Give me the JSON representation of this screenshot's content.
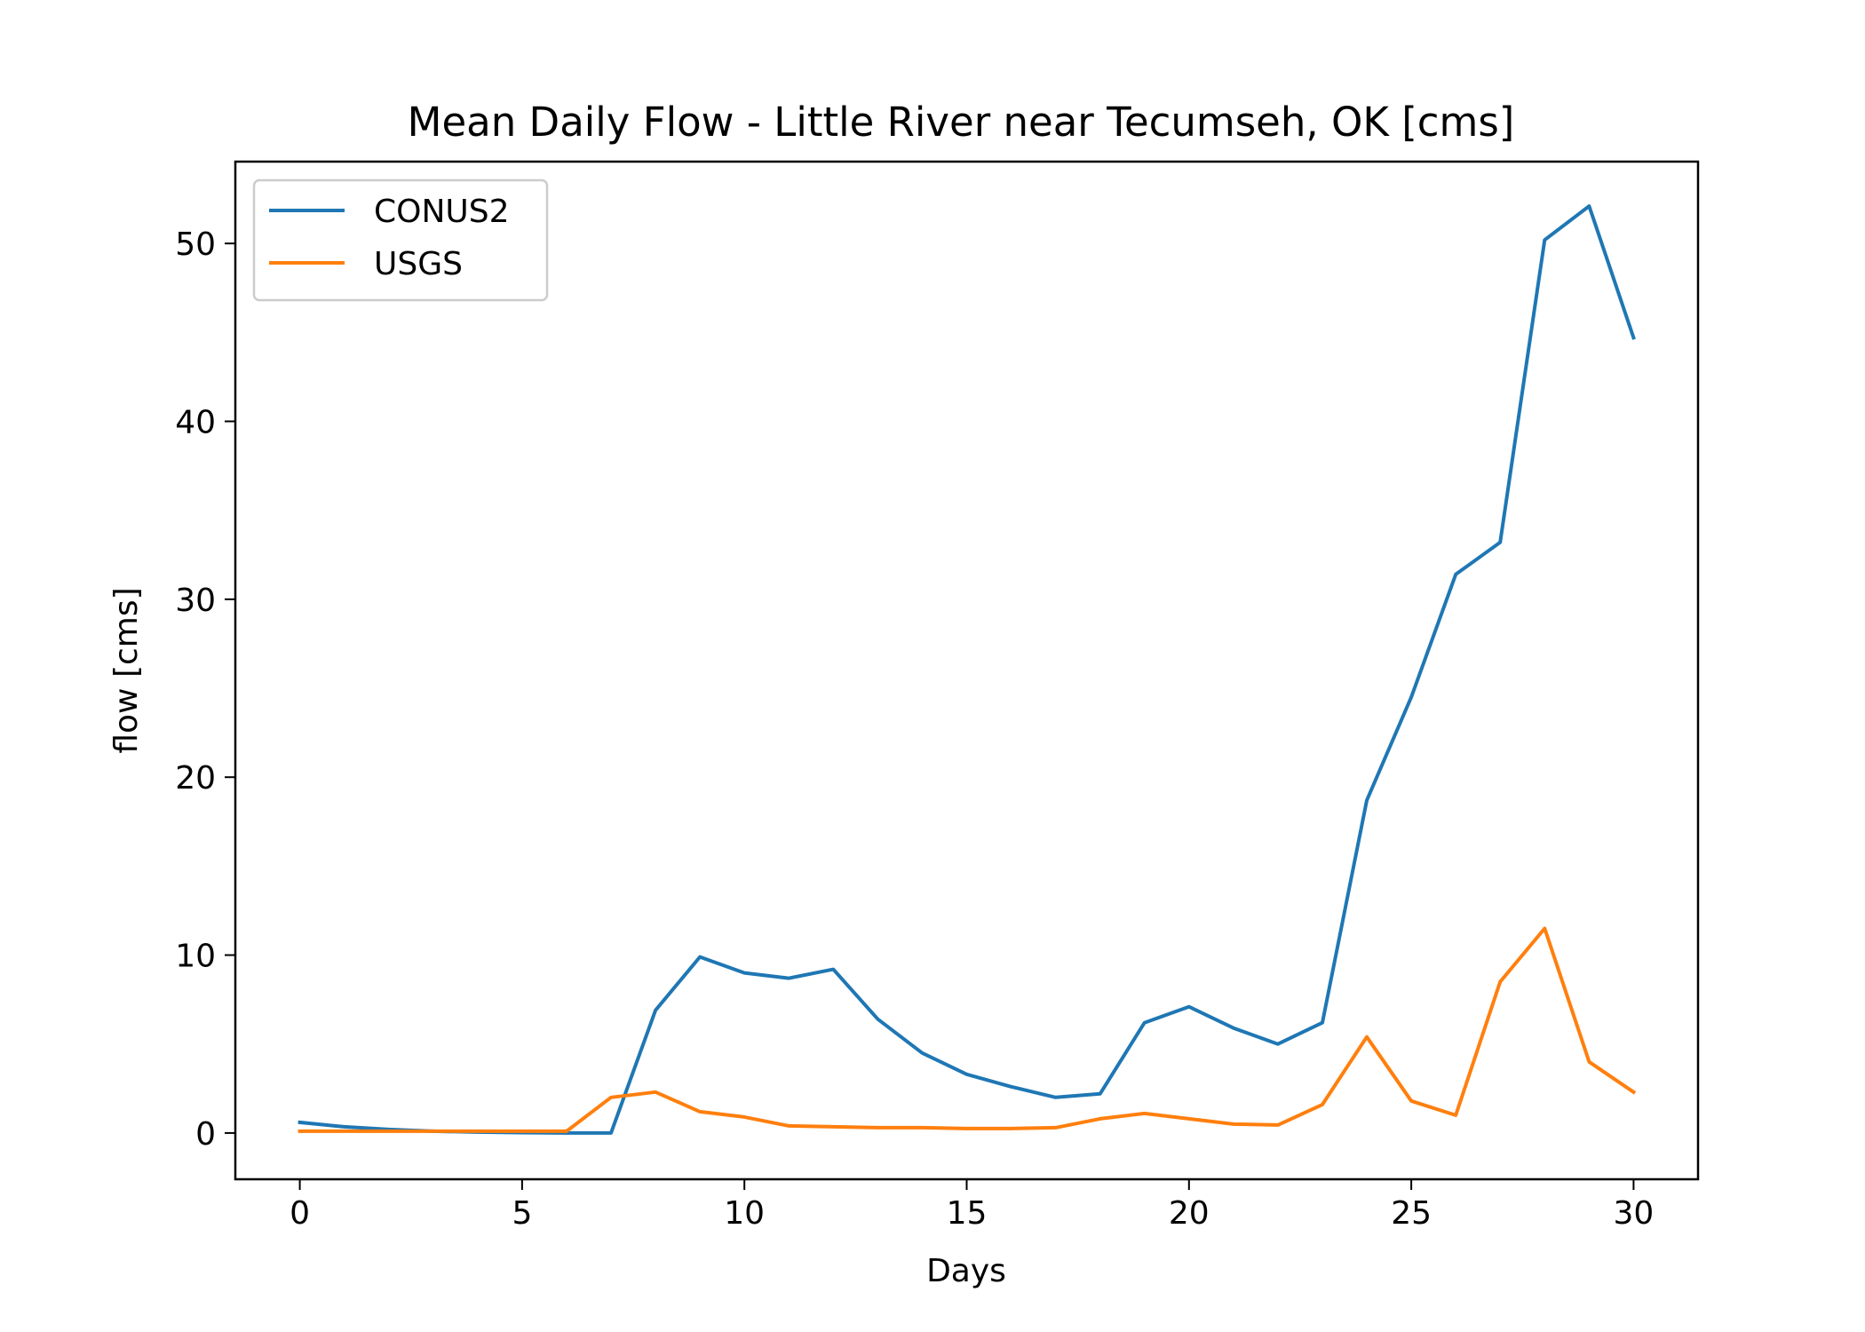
{
  "chart_data": {
    "type": "line",
    "title": "Mean Daily Flow - Little River near Tecumseh, OK [cms]",
    "xlabel": "Days",
    "ylabel": "flow [cms]",
    "xlim": [
      -1.45,
      31.45
    ],
    "ylim": [
      -2.6,
      54.6
    ],
    "xticks": [
      0,
      5,
      10,
      15,
      20,
      25,
      30
    ],
    "yticks": [
      0,
      10,
      20,
      30,
      40,
      50
    ],
    "grid": false,
    "legend_position": "upper-left",
    "x": [
      0,
      1,
      2,
      3,
      4,
      5,
      6,
      7,
      8,
      9,
      10,
      11,
      12,
      13,
      14,
      15,
      16,
      17,
      18,
      19,
      20,
      21,
      22,
      23,
      24,
      25,
      26,
      27,
      28,
      29,
      30
    ],
    "series": [
      {
        "name": "CONUS2",
        "color": "#1f77b4",
        "values": [
          0.6,
          0.35,
          0.2,
          0.1,
          0.05,
          0.02,
          0.0,
          0.0,
          6.9,
          9.9,
          9.0,
          8.7,
          9.2,
          6.4,
          4.5,
          3.3,
          2.6,
          2.0,
          2.2,
          6.2,
          7.1,
          5.9,
          5.0,
          6.2,
          18.7,
          24.5,
          31.4,
          33.2,
          50.2,
          52.1,
          44.7
        ]
      },
      {
        "name": "USGS",
        "color": "#ff7f0e",
        "values": [
          0.1,
          0.1,
          0.1,
          0.1,
          0.1,
          0.1,
          0.1,
          2.0,
          2.3,
          1.2,
          0.9,
          0.4,
          0.35,
          0.3,
          0.3,
          0.25,
          0.25,
          0.3,
          0.8,
          1.1,
          0.8,
          0.5,
          0.45,
          1.6,
          5.4,
          1.8,
          1.0,
          8.5,
          11.5,
          4.0,
          2.3
        ]
      }
    ]
  }
}
